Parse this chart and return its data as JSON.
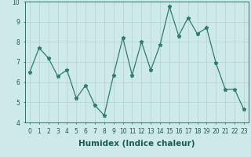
{
  "x": [
    0,
    1,
    2,
    3,
    4,
    5,
    6,
    7,
    8,
    9,
    10,
    11,
    12,
    13,
    14,
    15,
    16,
    17,
    18,
    19,
    20,
    21,
    22,
    23
  ],
  "y": [
    6.5,
    7.7,
    7.2,
    6.3,
    6.6,
    5.2,
    5.85,
    4.85,
    4.35,
    6.35,
    8.2,
    6.35,
    8.0,
    6.6,
    7.85,
    9.75,
    8.3,
    9.2,
    8.4,
    8.7,
    6.95,
    5.65,
    5.65,
    4.65
  ],
  "line_color": "#2e7d6e",
  "marker": "*",
  "marker_size": 3.5,
  "bg_color": "#ceeae8",
  "grid_color": "#aed4d0",
  "xlabel": "Humidex (Indice chaleur)",
  "xlabel_weight": "bold",
  "ylim": [
    4,
    10
  ],
  "xlim": [
    -0.5,
    23.5
  ],
  "yticks": [
    4,
    5,
    6,
    7,
    8,
    9,
    10
  ],
  "xtick_labels": [
    "0",
    "1",
    "2",
    "3",
    "4",
    "5",
    "6",
    "7",
    "8",
    "9",
    "10",
    "11",
    "12",
    "13",
    "14",
    "15",
    "16",
    "17",
    "18",
    "19",
    "20",
    "21",
    "22",
    "23"
  ],
  "tick_fontsize": 5.5,
  "xlabel_fontsize": 7.5,
  "tick_color": "#1a5c52",
  "axis_color": "#1a5c52"
}
